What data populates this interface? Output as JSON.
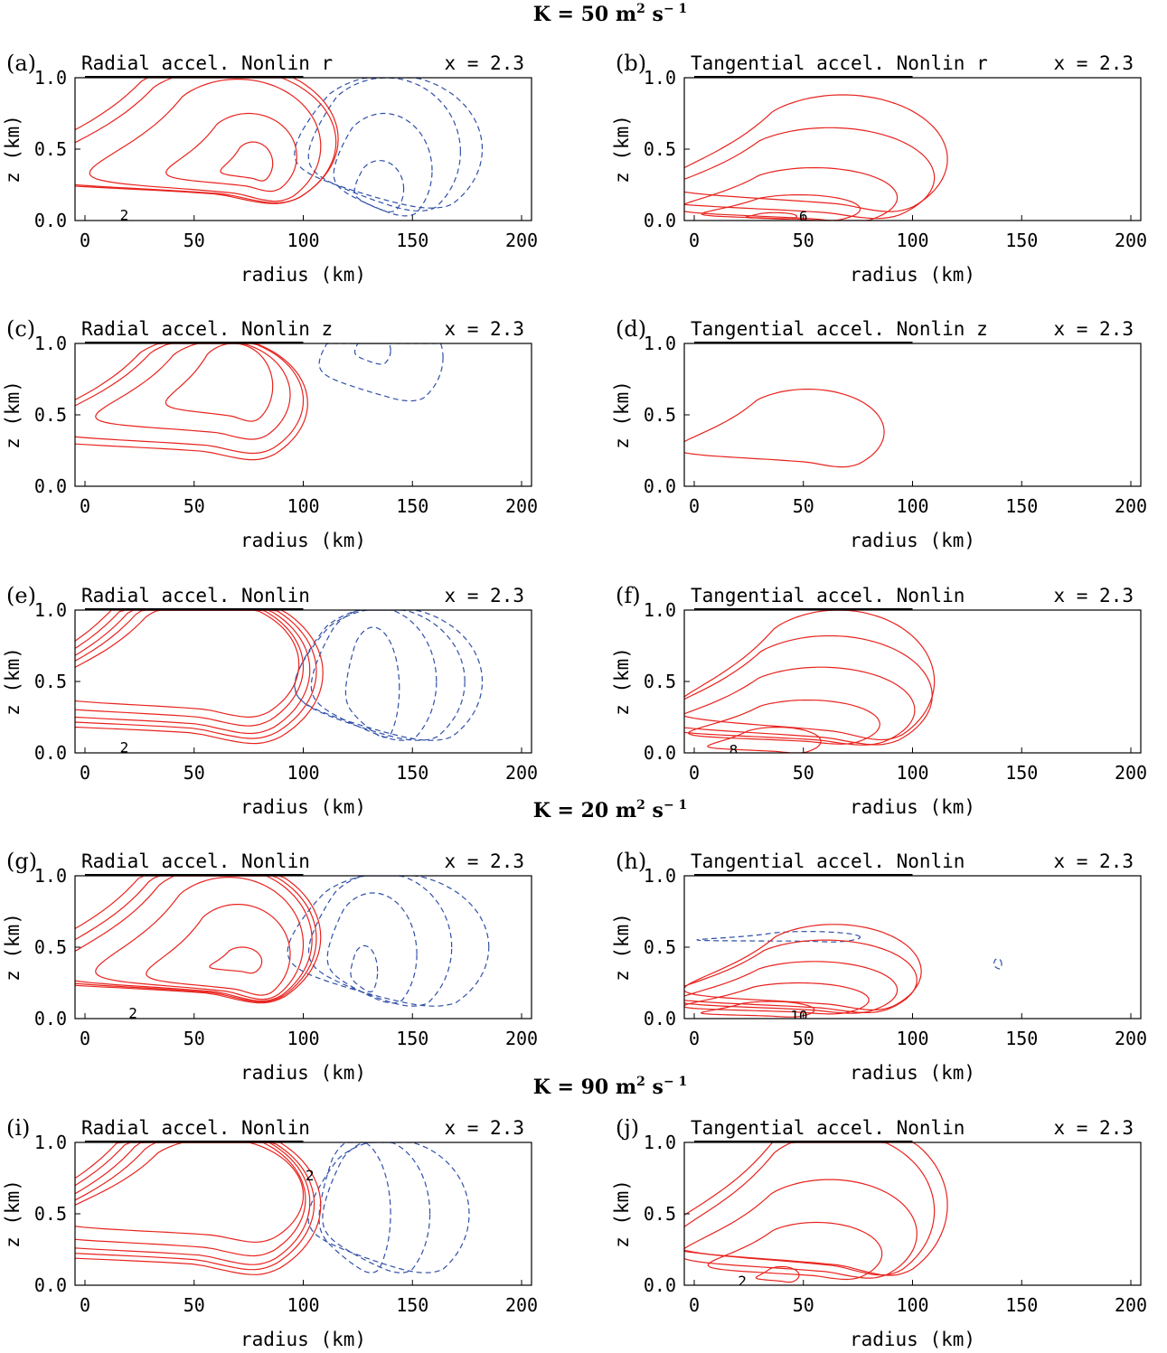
{
  "headers": [
    {
      "text_main": "K = 50 m",
      "sup1": "2",
      "mid": " s",
      "sup2": "− 1",
      "before_row": 0
    },
    {
      "text_main": "K = 20 m",
      "sup1": "2",
      "mid": " s",
      "sup2": "− 1",
      "before_row": 3
    },
    {
      "text_main": "K = 90 m",
      "sup1": "2",
      "mid": " s",
      "sup2": "− 1",
      "before_row": 4
    }
  ],
  "colors": {
    "positive": "#e8231e",
    "negative": "#3050a8",
    "frame": "#000000"
  },
  "chart_data": [
    {
      "id": "a",
      "tag": "(a)",
      "type": "contour",
      "title": "Radial accel. Nonlin r",
      "param": "x = 2.3",
      "xlabel": "radius (km)",
      "ylabel": "z (km)",
      "xlim": [
        0,
        200
      ],
      "ylim": [
        0,
        1
      ],
      "xticks": [
        "0",
        "50",
        "100",
        "150",
        "200"
      ],
      "yticks": [
        "0.0",
        "0.5",
        "1.0"
      ],
      "contour_labels": [
        {
          "text": "2",
          "r": 18,
          "z": 0.03
        }
      ],
      "positive": [
        {
          "r": 77,
          "z": 0.4,
          "rr": 9,
          "rz": 0.15,
          "k": 0.55,
          "open": false
        },
        {
          "r": 75,
          "z": 0.45,
          "rr": 22,
          "rz": 0.3,
          "k": 0.6,
          "open": false
        },
        {
          "r": 70,
          "z": 0.52,
          "rr": 38,
          "rz": 0.47,
          "k": 0.65,
          "open": true
        },
        {
          "r": 65,
          "z": 0.55,
          "rr": 50,
          "rz": 0.52,
          "k": 0.7,
          "open": true
        },
        {
          "r": 62,
          "z": 0.57,
          "rr": 54,
          "rz": 0.55,
          "k": 0.72,
          "open": true
        }
      ],
      "negative": [
        {
          "r": 135,
          "z": 0.22,
          "rr": 11,
          "rz": 0.2,
          "k": 0.05,
          "open": false
        },
        {
          "r": 137,
          "z": 0.35,
          "rr": 22,
          "rz": 0.4,
          "k": 0.05,
          "open": false
        },
        {
          "r": 138,
          "z": 0.48,
          "rr": 34,
          "rz": 0.52,
          "k": 0.05,
          "open": true
        },
        {
          "r": 140,
          "z": 0.5,
          "rr": 42,
          "rz": 0.52,
          "k": 0.05,
          "open": true
        }
      ]
    },
    {
      "id": "b",
      "tag": "(b)",
      "type": "contour",
      "title": "Tangential accel. Nonlin r",
      "param": "x = 2.3",
      "xlabel": "radius (km)",
      "ylabel": "z (km)",
      "xlim": [
        0,
        200
      ],
      "ylim": [
        0,
        1
      ],
      "xticks": [
        "0",
        "50",
        "100",
        "150",
        "200"
      ],
      "yticks": [
        "0.0",
        "0.5",
        "1.0"
      ],
      "contour_labels": [
        {
          "text": "6",
          "r": 50,
          "z": 0.02
        }
      ],
      "positive": [
        {
          "r": 37,
          "z": 0.03,
          "rr": 10,
          "rz": 0.025,
          "k": 0.3,
          "open": false
        },
        {
          "r": 48,
          "z": 0.08,
          "rr": 28,
          "rz": 0.1,
          "k": 0.5,
          "open": false
        },
        {
          "r": 55,
          "z": 0.16,
          "rr": 38,
          "rz": 0.21,
          "k": 0.55,
          "open": false
        },
        {
          "r": 62,
          "z": 0.3,
          "rr": 48,
          "rz": 0.35,
          "k": 0.6,
          "open": false
        },
        {
          "r": 68,
          "z": 0.43,
          "rr": 48,
          "rz": 0.45,
          "k": 0.6,
          "open": false
        }
      ],
      "negative": []
    },
    {
      "id": "c",
      "tag": "(c)",
      "type": "contour",
      "title": "Radial accel. Nonlin z",
      "param": "x = 2.3",
      "xlabel": "radius (km)",
      "ylabel": "z (km)",
      "xlim": [
        0,
        200
      ],
      "ylim": [
        0,
        1
      ],
      "xticks": [
        "0",
        "50",
        "100",
        "150",
        "200"
      ],
      "yticks": [
        "0.0",
        "0.5",
        "1.0"
      ],
      "contour_labels": [],
      "positive": [
        {
          "r": 68,
          "z": 0.7,
          "rr": 18,
          "rz": 0.3,
          "k": 0.6,
          "open": true
        },
        {
          "r": 62,
          "z": 0.64,
          "rr": 32,
          "rz": 0.38,
          "k": 0.65,
          "open": true
        },
        {
          "r": 58,
          "z": 0.6,
          "rr": 42,
          "rz": 0.45,
          "k": 0.7,
          "open": true
        },
        {
          "r": 56,
          "z": 0.58,
          "rr": 46,
          "rz": 0.48,
          "k": 0.72,
          "open": true
        }
      ],
      "negative": [
        {
          "r": 132,
          "z": 0.95,
          "rr": 8,
          "rz": 0.12,
          "k": 0.05,
          "open": true
        },
        {
          "r": 137,
          "z": 0.9,
          "rr": 27,
          "rz": 0.38,
          "k": 0.1,
          "open": true
        }
      ]
    },
    {
      "id": "d",
      "tag": "(d)",
      "type": "contour",
      "title": "Tangential accel. Nonlin z",
      "param": "x = 2.3",
      "xlabel": "radius (km)",
      "ylabel": "z (km)",
      "xlim": [
        0,
        200
      ],
      "ylim": [
        0,
        1
      ],
      "xticks": [
        "0",
        "50",
        "100",
        "150",
        "200"
      ],
      "yticks": [
        "0.0",
        "0.5",
        "1.0"
      ],
      "contour_labels": [],
      "positive": [
        {
          "r": 52,
          "z": 0.38,
          "rr": 35,
          "rz": 0.3,
          "k": 0.6,
          "open": false
        }
      ],
      "negative": []
    },
    {
      "id": "e",
      "tag": "(e)",
      "type": "contour",
      "title": "Radial accel. Nonlin",
      "param": "x = 2.3",
      "xlabel": "radius (km)",
      "ylabel": "z (km)",
      "xlim": [
        0,
        200
      ],
      "ylim": [
        0,
        1
      ],
      "xticks": [
        "0",
        "50",
        "100",
        "150",
        "200"
      ],
      "yticks": [
        "0.0",
        "0.5",
        "1.0"
      ],
      "contour_labels": [
        {
          "text": "2",
          "r": 18,
          "z": 0.03
        }
      ],
      "positive": [
        {
          "r": 56,
          "z": 0.62,
          "rr": 42,
          "rz": 0.45,
          "k": 0.7,
          "open": true
        },
        {
          "r": 54,
          "z": 0.6,
          "rr": 46,
          "rz": 0.5,
          "k": 0.72,
          "open": true
        },
        {
          "r": 53,
          "z": 0.58,
          "rr": 50,
          "rz": 0.54,
          "k": 0.74,
          "open": true
        },
        {
          "r": 52,
          "z": 0.57,
          "rr": 54,
          "rz": 0.57,
          "k": 0.76,
          "open": true
        },
        {
          "r": 51,
          "z": 0.56,
          "rr": 58,
          "rz": 0.6,
          "k": 0.78,
          "open": true
        }
      ],
      "negative": [
        {
          "r": 132,
          "z": 0.45,
          "rr": 12,
          "rz": 0.43,
          "k": 0.05,
          "open": false
        },
        {
          "r": 133,
          "z": 0.5,
          "rr": 28,
          "rz": 0.52,
          "k": 0.05,
          "open": true
        },
        {
          "r": 136,
          "z": 0.5,
          "rr": 38,
          "rz": 0.52,
          "k": 0.05,
          "open": true
        },
        {
          "r": 140,
          "z": 0.5,
          "rr": 42,
          "rz": 0.52,
          "k": 0.05,
          "open": true
        }
      ]
    },
    {
      "id": "f",
      "tag": "(f)",
      "type": "contour",
      "title": "Tangential accel. Nonlin",
      "param": "x = 2.3",
      "xlabel": "radius (km)",
      "ylabel": "z (km)",
      "xlim": [
        0,
        200
      ],
      "ylim": [
        0,
        1
      ],
      "xticks": [
        "0",
        "50",
        "100",
        "150",
        "200"
      ],
      "yticks": [
        "0.0",
        "0.5",
        "1.0"
      ],
      "contour_labels": [
        {
          "text": "8",
          "r": 18,
          "z": 0.01
        }
      ],
      "positive": [
        {
          "r": 38,
          "z": 0.08,
          "rr": 20,
          "rz": 0.1,
          "k": 0.5,
          "open": false
        },
        {
          "r": 52,
          "z": 0.2,
          "rr": 33,
          "rz": 0.17,
          "k": 0.55,
          "open": false
        },
        {
          "r": 58,
          "z": 0.3,
          "rr": 43,
          "rz": 0.3,
          "k": 0.6,
          "open": false
        },
        {
          "r": 62,
          "z": 0.4,
          "rr": 47,
          "rz": 0.42,
          "k": 0.6,
          "open": false
        },
        {
          "r": 66,
          "z": 0.5,
          "rr": 44,
          "rz": 0.5,
          "k": 0.6,
          "open": false
        }
      ],
      "negative": []
    },
    {
      "id": "g",
      "tag": "(g)",
      "type": "contour",
      "title": "Radial accel. Nonlin",
      "param": "x = 2.3",
      "xlabel": "radius (km)",
      "ylabel": "z (km)",
      "xlim": [
        0,
        200
      ],
      "ylim": [
        0,
        1
      ],
      "xticks": [
        "0",
        "50",
        "100",
        "150",
        "200"
      ],
      "yticks": [
        "0.0",
        "0.5",
        "1.0"
      ],
      "contour_labels": [
        {
          "text": "2",
          "r": 22,
          "z": 0.03
        }
      ],
      "positive": [
        {
          "r": 72,
          "z": 0.4,
          "rr": 9,
          "rz": 0.1,
          "k": 0.55,
          "open": false
        },
        {
          "r": 70,
          "z": 0.45,
          "rr": 24,
          "rz": 0.35,
          "k": 0.62,
          "open": false
        },
        {
          "r": 66,
          "z": 0.52,
          "rr": 34,
          "rz": 0.47,
          "k": 0.66,
          "open": true
        },
        {
          "r": 62,
          "z": 0.55,
          "rr": 42,
          "rz": 0.52,
          "k": 0.7,
          "open": true
        },
        {
          "r": 60,
          "z": 0.56,
          "rr": 46,
          "rz": 0.54,
          "k": 0.72,
          "open": true
        },
        {
          "r": 58,
          "z": 0.57,
          "rr": 50,
          "rz": 0.56,
          "k": 0.74,
          "open": true
        }
      ],
      "negative": [
        {
          "r": 128,
          "z": 0.33,
          "rr": 6,
          "rz": 0.18,
          "k": 0.05,
          "open": false
        },
        {
          "r": 132,
          "z": 0.45,
          "rr": 20,
          "rz": 0.43,
          "k": 0.05,
          "open": false
        },
        {
          "r": 136,
          "z": 0.5,
          "rr": 32,
          "rz": 0.52,
          "k": 0.05,
          "open": true
        },
        {
          "r": 140,
          "z": 0.5,
          "rr": 45,
          "rz": 0.52,
          "k": 0.05,
          "open": true
        }
      ]
    },
    {
      "id": "h",
      "tag": "(h)",
      "type": "contour",
      "title": "Tangential accel. Nonlin",
      "param": "x = 2.3",
      "xlabel": "radius (km)",
      "ylabel": "z (km)",
      "xlim": [
        0,
        200
      ],
      "ylim": [
        0,
        1
      ],
      "xticks": [
        "0",
        "50",
        "100",
        "150",
        "200"
      ],
      "yticks": [
        "0.0",
        "0.5",
        "1.0"
      ],
      "contour_labels": [
        {
          "text": "10",
          "r": 48,
          "z": 0.01
        }
      ],
      "positive": [
        {
          "r": 35,
          "z": 0.06,
          "rr": 20,
          "rz": 0.06,
          "k": 0.5,
          "open": false
        },
        {
          "r": 48,
          "z": 0.13,
          "rr": 32,
          "rz": 0.12,
          "k": 0.55,
          "open": false
        },
        {
          "r": 55,
          "z": 0.2,
          "rr": 38,
          "rz": 0.2,
          "k": 0.55,
          "open": false
        },
        {
          "r": 60,
          "z": 0.27,
          "rr": 42,
          "rz": 0.28,
          "k": 0.6,
          "open": false
        },
        {
          "r": 64,
          "z": 0.33,
          "rr": 40,
          "rz": 0.33,
          "k": 0.6,
          "open": false
        }
      ],
      "negative": [
        {
          "r": 52,
          "z": 0.57,
          "rr": 24,
          "rz": 0.04,
          "k": 0.9,
          "open": false
        },
        {
          "r": 139,
          "z": 0.38,
          "rr": 1.8,
          "rz": 0.04,
          "k": 0.0,
          "open": false
        }
      ]
    },
    {
      "id": "i",
      "tag": "(i)",
      "type": "contour",
      "title": "Radial accel. Nonlin",
      "param": "x = 2.3",
      "xlabel": "radius (km)",
      "ylabel": "z (km)",
      "xlim": [
        0,
        200
      ],
      "ylim": [
        0,
        1
      ],
      "xticks": [
        "0",
        "50",
        "100",
        "150",
        "200"
      ],
      "yticks": [
        "0.0",
        "0.5",
        "1.0"
      ],
      "contour_labels": [
        {
          "text": "2",
          "r": 103,
          "z": 0.76
        }
      ],
      "positive": [
        {
          "r": 60,
          "z": 0.63,
          "rr": 40,
          "rz": 0.4,
          "k": 0.7,
          "open": true
        },
        {
          "r": 57,
          "z": 0.6,
          "rr": 44,
          "rz": 0.48,
          "k": 0.72,
          "open": true
        },
        {
          "r": 55,
          "z": 0.58,
          "rr": 48,
          "rz": 0.53,
          "k": 0.74,
          "open": true
        },
        {
          "r": 53,
          "z": 0.57,
          "rr": 52,
          "rz": 0.56,
          "k": 0.76,
          "open": true
        },
        {
          "r": 52,
          "z": 0.56,
          "rr": 56,
          "rz": 0.59,
          "k": 0.78,
          "open": true
        }
      ],
      "negative": [
        {
          "r": 124,
          "z": 0.5,
          "rr": 16,
          "rz": 0.52,
          "k": 0.05,
          "open": true
        },
        {
          "r": 134,
          "z": 0.5,
          "rr": 24,
          "rz": 0.52,
          "k": 0.05,
          "open": true
        },
        {
          "r": 140,
          "z": 0.5,
          "rr": 36,
          "rz": 0.52,
          "k": 0.05,
          "open": true
        }
      ]
    },
    {
      "id": "j",
      "tag": "(j)",
      "type": "contour",
      "title": "Tangential accel. Nonlin",
      "param": "x = 2.3",
      "xlabel": "radius (km)",
      "ylabel": "z (km)",
      "xlim": [
        0,
        200
      ],
      "ylim": [
        0,
        1
      ],
      "xticks": [
        "0",
        "50",
        "100",
        "150",
        "200"
      ],
      "yticks": [
        "0.0",
        "0.5",
        "1.0"
      ],
      "contour_labels": [
        {
          "text": "2",
          "r": 22,
          "z": 0.02
        }
      ],
      "positive": [
        {
          "r": 40,
          "z": 0.07,
          "rr": 8,
          "rz": 0.06,
          "k": 0.4,
          "open": false
        },
        {
          "r": 56,
          "z": 0.22,
          "rr": 30,
          "rz": 0.22,
          "k": 0.55,
          "open": false
        },
        {
          "r": 62,
          "z": 0.36,
          "rr": 40,
          "rz": 0.38,
          "k": 0.6,
          "open": false
        },
        {
          "r": 66,
          "z": 0.52,
          "rr": 44,
          "rz": 0.55,
          "k": 0.62,
          "open": true
        },
        {
          "r": 68,
          "z": 0.56,
          "rr": 48,
          "rz": 0.6,
          "k": 0.65,
          "open": true
        }
      ],
      "negative": []
    }
  ]
}
